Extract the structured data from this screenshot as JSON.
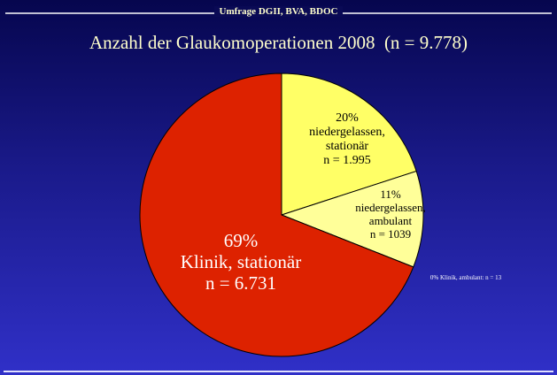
{
  "chart_data": {
    "type": "pie",
    "supertitle": "Umfrage DGII, BVA, BDOC",
    "title": "Anzahl der Glaukomoperationen 2008  (n = 9.778)",
    "categories": [
      "niedergelassen, stationär",
      "niedergelassen, ambulant",
      "Klinik, ambulant:",
      "Klinik, stationär"
    ],
    "values": [
      20,
      11,
      0,
      69
    ],
    "value_labels": [
      "20%",
      "11%",
      "0%",
      "69%"
    ],
    "n_labels": [
      "n = 1.995",
      "n = 1039",
      "n = 13",
      "n = 6.731"
    ],
    "colors": [
      "#ffff66",
      "#ffff99",
      "#ffffcc",
      "#dd2200"
    ]
  }
}
